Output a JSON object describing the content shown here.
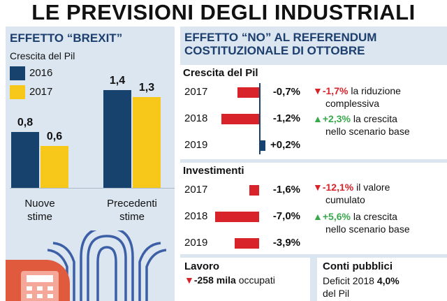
{
  "title": "LE PREVISIONI DEGLI INDUSTRIALI",
  "colors": {
    "navy": "#17426e",
    "yellow": "#f7c71a",
    "red": "#d8232a",
    "green": "#37a94b",
    "panel": "#dbe6f1",
    "title_blue": "#1d3f6e"
  },
  "brexit": {
    "title": "EFFETTO “BREXIT”",
    "subtitle": "Crescita del Pil",
    "legend": [
      "2016",
      "2017"
    ],
    "groups": [
      {
        "label_line1": "Nuove",
        "label_line2": "stime",
        "v2016": 0.8,
        "v2017": 0.6,
        "l2016": "0,8",
        "l2017": "0,6"
      },
      {
        "label_line1": "Precedenti",
        "label_line2": "stime",
        "v2016": 1.4,
        "v2017": 1.3,
        "l2016": "1,4",
        "l2017": "1,3"
      }
    ]
  },
  "referendum": {
    "title_line1": "EFFETTO “NO” AL REFERENDUM",
    "title_line2": "COSTITUZIONALE DI OTTOBRE",
    "pil": {
      "title": "Crescita del Pil",
      "rows": [
        {
          "year": "2017",
          "value": -0.7,
          "label": "-0,7%"
        },
        {
          "year": "2018",
          "value": -1.2,
          "label": "-1,2%"
        },
        {
          "year": "2019",
          "value": 0.2,
          "label": "+0,2%"
        }
      ],
      "note_down_value": "-1,7%",
      "note_down_text_a": "la riduzione",
      "note_down_text_b": "complessiva",
      "note_up_value": "+2,3%",
      "note_up_text_a": "la crescita",
      "note_up_text_b": "nello scenario base"
    },
    "investimenti": {
      "title": "Investimenti",
      "rows": [
        {
          "year": "2017",
          "value": -1.6,
          "label": "-1,6%"
        },
        {
          "year": "2018",
          "value": -7.0,
          "label": "-7,0%"
        },
        {
          "year": "2019",
          "value": -3.9,
          "label": "-3,9%"
        }
      ],
      "note_down_value": "-12,1%",
      "note_down_text_a": "il valore",
      "note_down_text_b": "cumulato",
      "note_up_value": "+5,6%",
      "note_up_text_a": "la crescita",
      "note_up_text_b": "nello scenario base"
    },
    "lavoro": {
      "title": "Lavoro",
      "value": "-258 mila",
      "text": "occupati"
    },
    "conti": {
      "title": "Conti pubblici",
      "text": "Deficit 2018",
      "value": "4,0%",
      "line2": "del Pil"
    }
  },
  "chart_data": [
    {
      "type": "bar",
      "title": "EFFETTO “BREXIT”",
      "subtitle": "Crescita del Pil",
      "categories": [
        "Nuove stime",
        "Precedenti stime"
      ],
      "series": [
        {
          "name": "2016",
          "values": [
            0.8,
            1.4
          ]
        },
        {
          "name": "2017",
          "values": [
            0.6,
            1.3
          ]
        }
      ]
    },
    {
      "type": "bar",
      "title": "Crescita del Pil",
      "categories": [
        "2017",
        "2018",
        "2019"
      ],
      "values": [
        -0.7,
        -1.2,
        0.2
      ]
    },
    {
      "type": "bar",
      "title": "Investimenti",
      "categories": [
        "2017",
        "2018",
        "2019"
      ],
      "values": [
        -1.6,
        -7.0,
        -3.9
      ]
    }
  ]
}
